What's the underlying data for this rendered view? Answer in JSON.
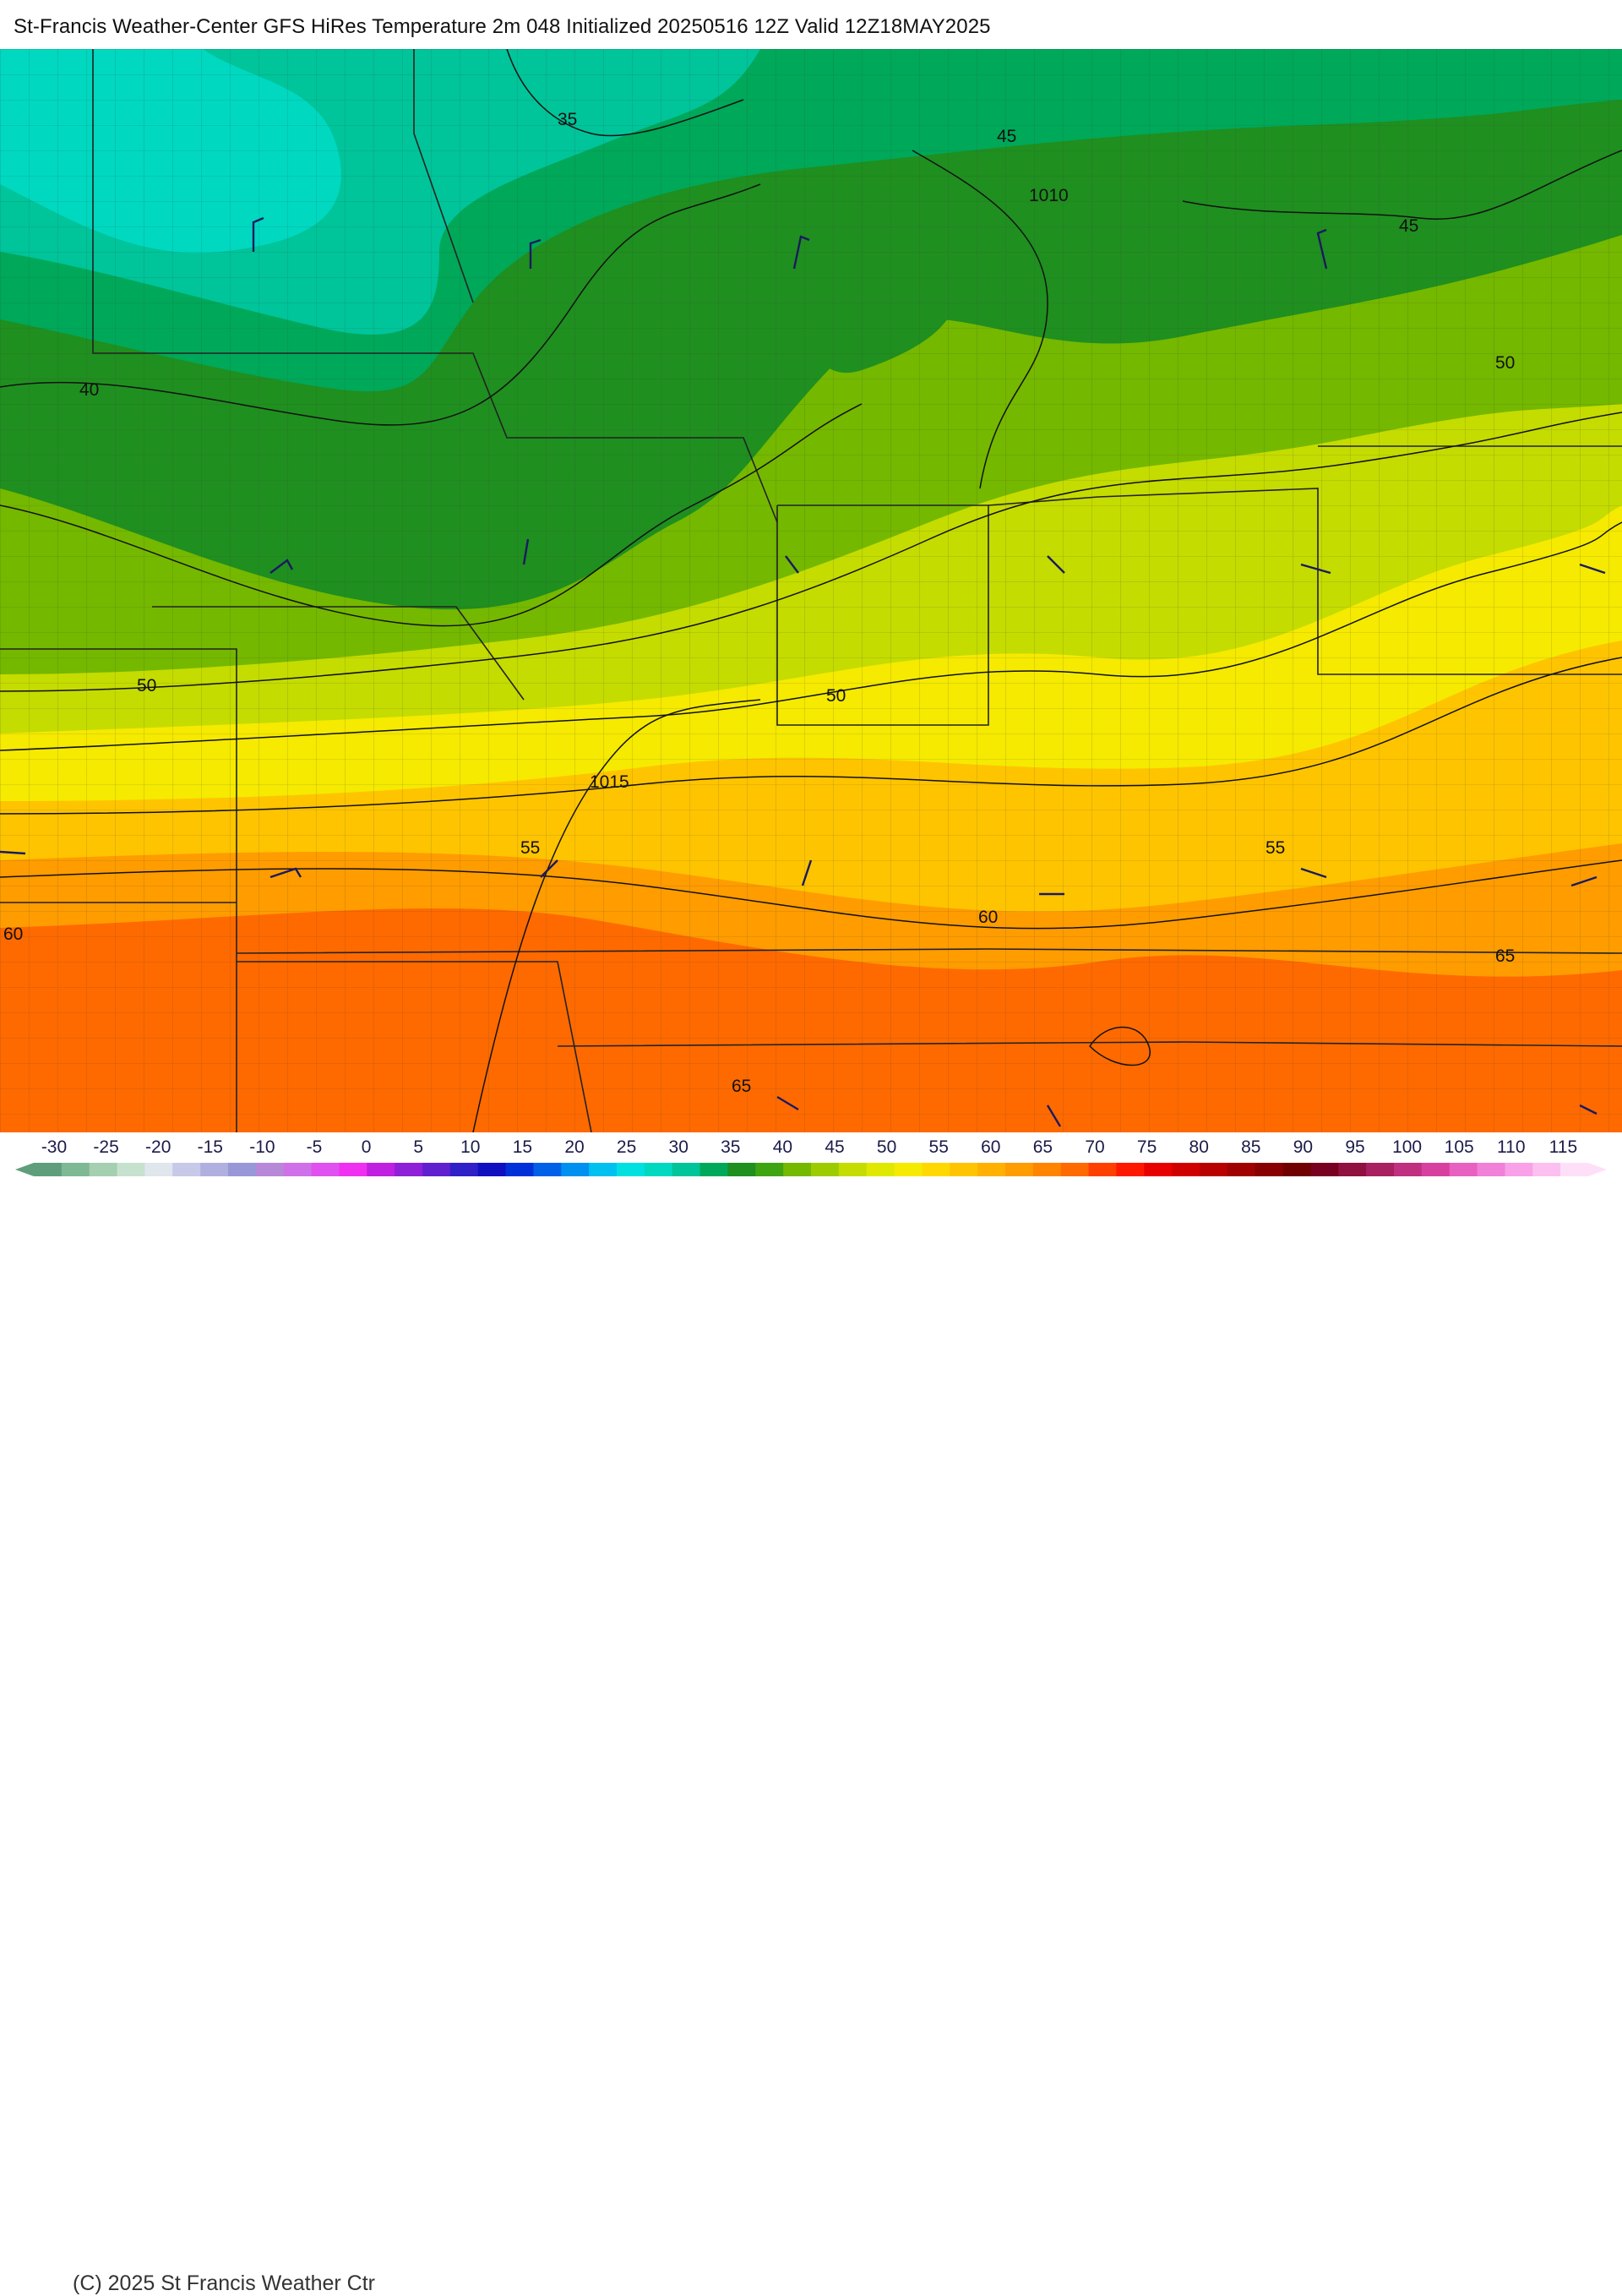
{
  "title": "St-Francis Weather-Center GFS HiRes Temperature 2m  048 Initialized 20250516 12Z Valid 12Z18MAY2025",
  "copyright": "(C) 2025 St Francis Weather Ctr",
  "colors": {
    "t30": "#00d8c0",
    "t35": "#00c49a",
    "t40": "#00a859",
    "t45": "#1f8f1f",
    "t50": "#74b800",
    "t55": "#c4dc00",
    "t60": "#f5ea00",
    "t65": "#ffc400",
    "t70": "#ff9c00",
    "t75": "#ff6a00",
    "boundary": "#222222",
    "county": "#444444",
    "isobar": "#111111",
    "wind_barb": "#1a1a60"
  },
  "map": {
    "temperature_labels": [
      "35",
      "45",
      "1010",
      "45",
      "40",
      "50",
      "50",
      "50",
      "1015",
      "55",
      "55",
      "60",
      "60",
      "65",
      "65"
    ],
    "isobar_labels": [
      "1010",
      "1015"
    ],
    "isotherm_labels": [
      "35",
      "40",
      "45",
      "45",
      "50",
      "50",
      "50",
      "55",
      "55",
      "60",
      "60",
      "65",
      "65"
    ]
  },
  "legend": {
    "ticks": [
      "-30",
      "-25",
      "-20",
      "-15",
      "-10",
      "-5",
      "0",
      "5",
      "10",
      "15",
      "20",
      "25",
      "30",
      "35",
      "40",
      "45",
      "50",
      "55",
      "60",
      "65",
      "70",
      "75",
      "80",
      "85",
      "90",
      "95",
      "100",
      "105",
      "110",
      "115"
    ],
    "swatches": [
      "#5f9e7a",
      "#7fb894",
      "#a4cfb0",
      "#c6e2cf",
      "#dfe6ec",
      "#c8c8e8",
      "#b0b0e0",
      "#9898d8",
      "#b888d8",
      "#d070e8",
      "#e050f0",
      "#f030f0",
      "#c020e0",
      "#9020d8",
      "#6020d0",
      "#3020c8",
      "#1010c0",
      "#0030d8",
      "#0060e8",
      "#0090f0",
      "#00c0f0",
      "#00e0e0",
      "#00d8c0",
      "#00c49a",
      "#00a859",
      "#1f8f1f",
      "#3ea410",
      "#74b800",
      "#9ccc00",
      "#c4dc00",
      "#e0e800",
      "#f5ea00",
      "#ffd800",
      "#ffc400",
      "#ffb000",
      "#ff9c00",
      "#ff8400",
      "#ff6a00",
      "#ff4000",
      "#ff1800",
      "#e80000",
      "#d00000",
      "#b80000",
      "#a00000",
      "#880000",
      "#700000",
      "#780020",
      "#901040",
      "#a82060",
      "#c03080",
      "#d840a0",
      "#e860c0",
      "#f080d8",
      "#f8a0e8",
      "#fcc0f0",
      "#fde0f8"
    ]
  }
}
